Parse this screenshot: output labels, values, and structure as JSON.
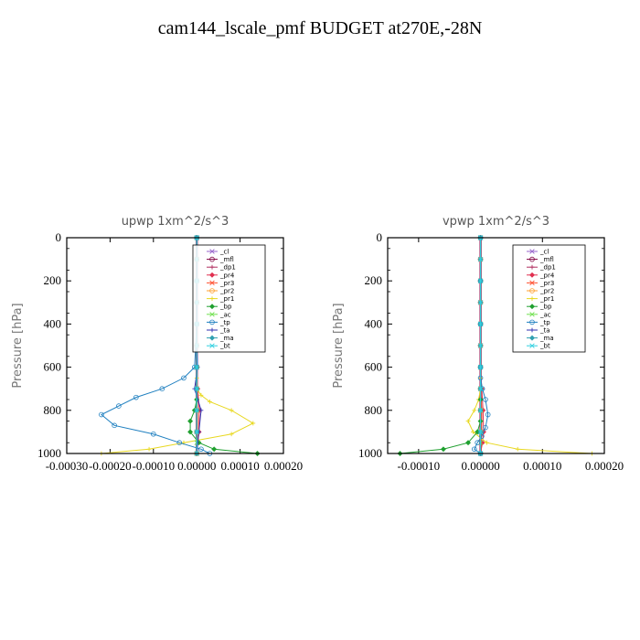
{
  "title": "cam144_lscale_pmf  BUDGET at270E,-28N",
  "chart_data": [
    {
      "type": "line",
      "title": "upwp   1xm^2/s^3",
      "ylabel": "Pressure [hPa]",
      "xlabel": "",
      "xlim": [
        -0.0003,
        0.0002
      ],
      "ylim": [
        1000,
        0
      ],
      "xticks": [
        "-0.00030",
        "-0.00020",
        "-0.00010",
        "0.00000",
        "0.00010",
        "0.00020"
      ],
      "yticks": [
        "0",
        "200",
        "400",
        "600",
        "800",
        "1000"
      ],
      "legend_position": "top-right",
      "series": [
        {
          "name": "_cl",
          "color": "#9966cc",
          "x": [
            0,
            0,
            0,
            0,
            0,
            0,
            0,
            0,
            0,
            0,
            0
          ],
          "y": [
            0,
            100,
            200,
            300,
            400,
            500,
            600,
            700,
            800,
            900,
            1000
          ]
        },
        {
          "name": "_mfl",
          "color": "#800040",
          "x": [
            0,
            0,
            0,
            0,
            0,
            0,
            0,
            0,
            0,
            0,
            0
          ],
          "y": [
            0,
            100,
            200,
            300,
            400,
            500,
            600,
            700,
            800,
            900,
            1000
          ]
        },
        {
          "name": "_dp1",
          "color": "#b03060",
          "x": [
            0,
            0,
            0,
            0,
            0,
            0,
            0,
            0,
            0,
            0,
            0
          ],
          "y": [
            0,
            100,
            200,
            300,
            400,
            500,
            600,
            700,
            800,
            900,
            1000
          ]
        },
        {
          "name": "_pr4",
          "color": "#e03050",
          "x": [
            0,
            0,
            0,
            0,
            0,
            0,
            0,
            2e-06,
            6e-06,
            5e-06,
            0
          ],
          "y": [
            0,
            100,
            200,
            300,
            400,
            500,
            600,
            700,
            800,
            900,
            1000
          ]
        },
        {
          "name": "_pr3",
          "color": "#ff5030",
          "x": [
            0,
            0,
            0,
            0,
            0,
            0,
            0,
            0,
            2e-06,
            2e-06,
            0
          ],
          "y": [
            0,
            100,
            200,
            300,
            400,
            500,
            600,
            700,
            800,
            900,
            1000
          ]
        },
        {
          "name": "_pr2",
          "color": "#ffa030",
          "x": [
            0,
            0,
            0,
            0,
            0,
            0,
            0,
            0,
            0,
            0,
            0
          ],
          "y": [
            0,
            100,
            200,
            300,
            400,
            500,
            600,
            700,
            800,
            900,
            1000
          ]
        },
        {
          "name": "_pr1",
          "color": "#e8d820",
          "x": [
            0,
            0,
            0,
            0,
            0,
            0,
            1e-05,
            3e-05,
            8e-05,
            0.00013,
            8e-05,
            -3e-05,
            -0.00011,
            -0.00022
          ],
          "y": [
            0,
            200,
            400,
            600,
            650,
            700,
            730,
            760,
            800,
            860,
            910,
            950,
            980,
            1000
          ]
        },
        {
          "name": "_bp",
          "color": "#20a030",
          "x": [
            0,
            0,
            0,
            0,
            0,
            0,
            -5e-06,
            -1.5e-05,
            -1.5e-05,
            5e-06,
            4e-05,
            0.00014
          ],
          "y": [
            0,
            200,
            400,
            600,
            700,
            750,
            800,
            850,
            900,
            950,
            980,
            1000
          ]
        },
        {
          "name": "_ac",
          "color": "#70e050",
          "x": [
            0,
            0,
            0,
            0,
            0,
            0,
            0,
            0,
            0
          ],
          "y": [
            0,
            200,
            400,
            600,
            700,
            800,
            900,
            950,
            1000
          ]
        },
        {
          "name": "_tp",
          "color": "#2080c0",
          "x": [
            0,
            0,
            0,
            -5e-06,
            -3e-05,
            -8e-05,
            -0.00014,
            -0.00018,
            -0.00022,
            -0.00019,
            -0.0001,
            -4e-05,
            1e-05,
            3e-05
          ],
          "y": [
            0,
            200,
            400,
            600,
            650,
            700,
            740,
            780,
            820,
            870,
            910,
            950,
            980,
            1000
          ]
        },
        {
          "name": "_ta",
          "color": "#3030b0",
          "x": [
            0,
            0,
            0,
            0,
            0,
            0,
            2e-06,
            -5e-06,
            1e-05,
            5e-06,
            0
          ],
          "y": [
            0,
            100,
            200,
            300,
            400,
            500,
            600,
            700,
            800,
            900,
            1000
          ]
        },
        {
          "name": "_ma",
          "color": "#30a0b0",
          "x": [
            0,
            0,
            0,
            0,
            0,
            0,
            0,
            0,
            0,
            0,
            0
          ],
          "y": [
            0,
            100,
            200,
            300,
            400,
            500,
            600,
            700,
            800,
            900,
            1000
          ]
        },
        {
          "name": "_bt",
          "color": "#30d0e0",
          "x": [
            0,
            0,
            0,
            0,
            0,
            0,
            0,
            0,
            0,
            0,
            0
          ],
          "y": [
            0,
            100,
            200,
            300,
            400,
            500,
            600,
            700,
            800,
            900,
            1000
          ]
        }
      ]
    },
    {
      "type": "line",
      "title": "vpwp   1xm^2/s^3",
      "ylabel": "Pressure [hPa]",
      "xlabel": "",
      "xlim": [
        -0.00015,
        0.0002
      ],
      "ylim": [
        1000,
        0
      ],
      "xticks": [
        "-0.00010",
        "0.00000",
        "0.00010",
        "0.00020"
      ],
      "yticks": [
        "0",
        "200",
        "400",
        "600",
        "800",
        "1000"
      ],
      "legend_position": "top-right",
      "series": [
        {
          "name": "_cl",
          "color": "#9966cc",
          "x": [
            0,
            0,
            0,
            0,
            0,
            0,
            0,
            0,
            0,
            0,
            0
          ],
          "y": [
            0,
            100,
            200,
            300,
            400,
            500,
            600,
            700,
            800,
            900,
            1000
          ]
        },
        {
          "name": "_mfl",
          "color": "#800040",
          "x": [
            0,
            0,
            0,
            0,
            0,
            0,
            0,
            0,
            0,
            0,
            0
          ],
          "y": [
            0,
            100,
            200,
            300,
            400,
            500,
            600,
            700,
            800,
            900,
            1000
          ]
        },
        {
          "name": "_dp1",
          "color": "#b03060",
          "x": [
            0,
            0,
            0,
            0,
            0,
            0,
            0,
            0,
            0,
            0,
            0
          ],
          "y": [
            0,
            100,
            200,
            300,
            400,
            500,
            600,
            700,
            800,
            900,
            1000
          ]
        },
        {
          "name": "_pr4",
          "color": "#e03050",
          "x": [
            0,
            0,
            0,
            0,
            0,
            0,
            0,
            2e-06,
            4e-06,
            5e-06,
            3e-06,
            0
          ],
          "y": [
            0,
            100,
            200,
            300,
            400,
            500,
            600,
            700,
            800,
            900,
            950,
            1000
          ]
        },
        {
          "name": "_pr3",
          "color": "#ff5030",
          "x": [
            0,
            0,
            0,
            0,
            0,
            0,
            0,
            0,
            2e-06,
            2e-06,
            0
          ],
          "y": [
            0,
            100,
            200,
            300,
            400,
            500,
            600,
            700,
            800,
            900,
            1000
          ]
        },
        {
          "name": "_pr2",
          "color": "#ffa030",
          "x": [
            0,
            0,
            0,
            0,
            0,
            0,
            0,
            0,
            0,
            0,
            0
          ],
          "y": [
            0,
            100,
            200,
            300,
            400,
            500,
            600,
            700,
            800,
            900,
            1000
          ]
        },
        {
          "name": "_pr1",
          "color": "#e8d820",
          "x": [
            0,
            0,
            0,
            0,
            0,
            0,
            -3e-06,
            -1e-05,
            -2e-05,
            -1.2e-05,
            1e-05,
            6e-05,
            0.00018
          ],
          "y": [
            0,
            200,
            400,
            600,
            650,
            700,
            750,
            800,
            850,
            900,
            950,
            980,
            1000
          ]
        },
        {
          "name": "_bp",
          "color": "#20a030",
          "x": [
            0,
            0,
            0,
            0,
            0,
            0,
            0,
            0,
            -5e-06,
            -2e-05,
            -6e-05,
            -0.00013
          ],
          "y": [
            0,
            200,
            400,
            600,
            700,
            750,
            800,
            850,
            900,
            950,
            980,
            1000
          ]
        },
        {
          "name": "_ac",
          "color": "#70e050",
          "x": [
            0,
            0,
            0,
            0,
            0,
            0,
            0,
            0,
            0
          ],
          "y": [
            0,
            200,
            400,
            600,
            700,
            800,
            900,
            950,
            1000
          ]
        },
        {
          "name": "_tp",
          "color": "#2080c0",
          "x": [
            0,
            0,
            0,
            0,
            0,
            3e-06,
            8e-06,
            1.2e-05,
            8e-06,
            2e-06,
            -5e-06,
            -1e-05,
            0
          ],
          "y": [
            0,
            200,
            400,
            600,
            650,
            700,
            750,
            820,
            880,
            920,
            950,
            980,
            1000
          ]
        },
        {
          "name": "_ta",
          "color": "#3030b0",
          "x": [
            0,
            0,
            0,
            0,
            0,
            0,
            0,
            0,
            0,
            0,
            0
          ],
          "y": [
            0,
            100,
            200,
            300,
            400,
            500,
            600,
            700,
            800,
            900,
            1000
          ]
        },
        {
          "name": "_ma",
          "color": "#30a0b0",
          "x": [
            0,
            0,
            0,
            0,
            0,
            0,
            0,
            0,
            0,
            0,
            0
          ],
          "y": [
            0,
            100,
            200,
            300,
            400,
            500,
            600,
            700,
            800,
            900,
            1000
          ]
        },
        {
          "name": "_bt",
          "color": "#30d0e0",
          "x": [
            0,
            0,
            0,
            0,
            0,
            0,
            0,
            0,
            0,
            0,
            0
          ],
          "y": [
            0,
            100,
            200,
            300,
            400,
            500,
            600,
            700,
            800,
            900,
            1000
          ]
        }
      ]
    }
  ]
}
